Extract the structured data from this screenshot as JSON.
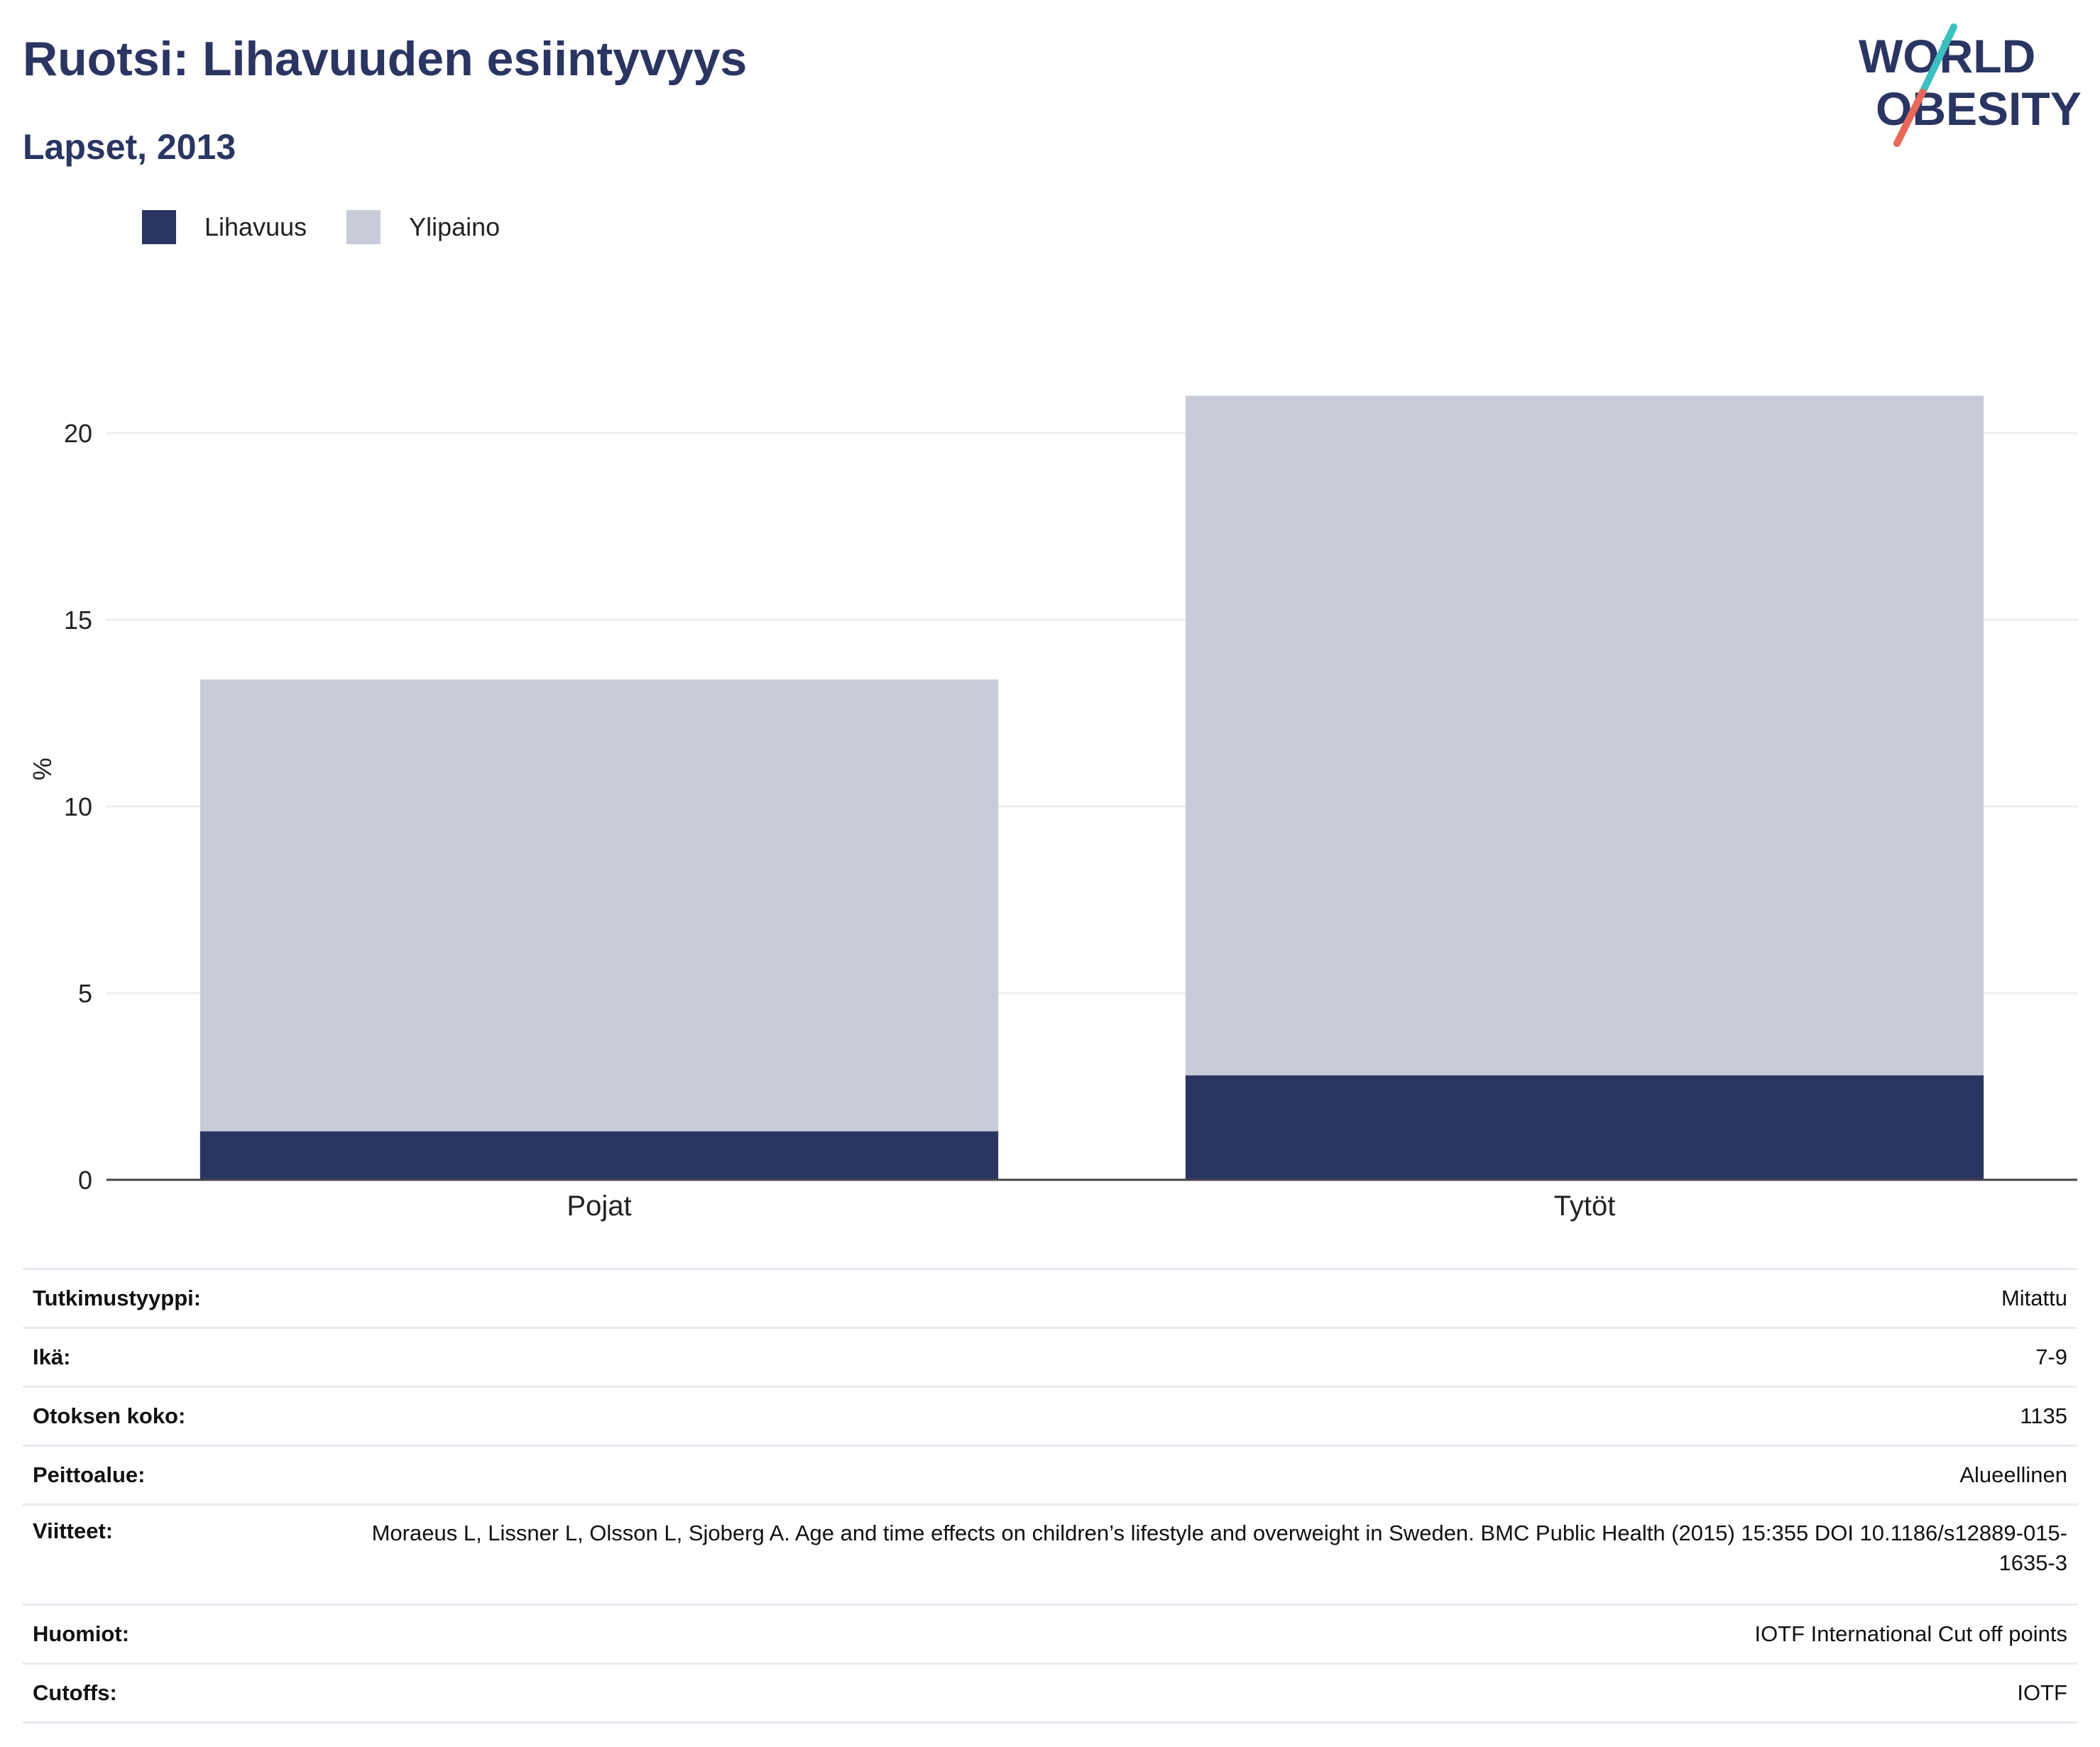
{
  "header": {
    "title": "Ruotsi: Lihavuuden esiintyvyys",
    "subtitle": "Lapset, 2013"
  },
  "logo": {
    "line1": "WORLD",
    "line2": "OBESITY"
  },
  "colors": {
    "obesity": "#2a3562",
    "overweight": "#c9ccd8",
    "text_dark": "#2a3562",
    "logo_teal": "#3bbfbf",
    "logo_coral": "#e8685a"
  },
  "chart_data": {
    "type": "bar",
    "stacked": true,
    "categories": [
      "Pojat",
      "Tytöt"
    ],
    "series": [
      {
        "name": "Lihavuus",
        "values": [
          1.3,
          2.8
        ]
      },
      {
        "name": "Ylipaino",
        "values": [
          12.1,
          18.2
        ]
      }
    ],
    "xlabel": "",
    "ylabel": "%",
    "ylim": [
      0,
      22
    ],
    "yticks": [
      0,
      5,
      10,
      15,
      20
    ],
    "legend": "top-left",
    "grid": true
  },
  "meta": [
    {
      "key": "Tutkimustyyppi:",
      "value": "Mitattu"
    },
    {
      "key": "Ikä:",
      "value": "7-9"
    },
    {
      "key": "Otoksen koko:",
      "value": "1135"
    },
    {
      "key": "Peittoalue:",
      "value": "Alueellinen"
    },
    {
      "key": "Viitteet:",
      "value": "Moraeus L, Lissner L, Olsson L, Sjoberg A. Age and time effects on children’s lifestyle and overweight in Sweden. BMC Public Health (2015) 15:355 DOI 10.1186/s12889-015-1635-3"
    },
    {
      "key": "Huomiot:",
      "value": "IOTF International Cut off points"
    },
    {
      "key": "Cutoffs:",
      "value": "IOTF"
    }
  ]
}
